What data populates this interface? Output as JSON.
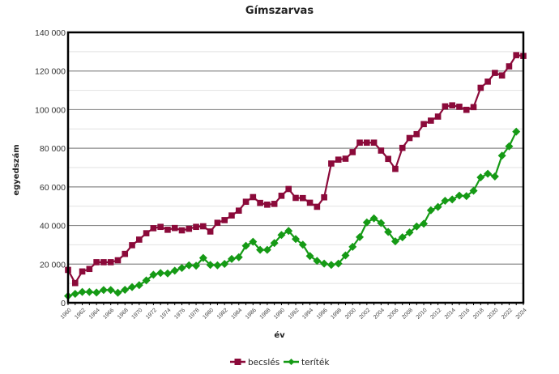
{
  "chart_data": {
    "type": "line",
    "title": "Gímszarvas",
    "xlabel": "év",
    "ylabel": "egyedszám",
    "ylim": [
      0,
      140000
    ],
    "xlim": [
      1960,
      2024
    ],
    "yticks": [
      0,
      20000,
      40000,
      60000,
      80000,
      100000,
      120000,
      140000
    ],
    "ytick_labels": [
      "0",
      "20 000",
      "40 000",
      "60 000",
      "80 000",
      "100 000",
      "120 000",
      "140 000"
    ],
    "xtick_labels": [
      "1960",
      "1962",
      "1964",
      "1966",
      "1968",
      "1970",
      "1972",
      "1974",
      "1976",
      "1978",
      "1980",
      "1982",
      "1984",
      "1986",
      "1988",
      "1990",
      "1992",
      "1994",
      "1996",
      "1998",
      "2000",
      "2002",
      "2004",
      "2006",
      "2008",
      "2010",
      "2012",
      "2014",
      "2016",
      "2018",
      "2020",
      "2022",
      "2024"
    ],
    "grid": {
      "major": 20000,
      "minor": 10000
    },
    "legend_position": "bottom",
    "x": [
      1960,
      1961,
      1962,
      1963,
      1964,
      1965,
      1966,
      1967,
      1968,
      1969,
      1970,
      1971,
      1972,
      1973,
      1974,
      1975,
      1976,
      1977,
      1978,
      1979,
      1980,
      1981,
      1982,
      1983,
      1984,
      1985,
      1986,
      1987,
      1988,
      1989,
      1990,
      1991,
      1992,
      1993,
      1994,
      1995,
      1996,
      1997,
      1998,
      1999,
      2000,
      2001,
      2002,
      2003,
      2004,
      2005,
      2006,
      2007,
      2008,
      2009,
      2010,
      2011,
      2012,
      2013,
      2014,
      2015,
      2016,
      2017,
      2018,
      2019,
      2020,
      2021,
      2022,
      2023,
      2024
    ],
    "series": [
      {
        "name": "becslés",
        "color": "#8b0a3a",
        "marker": "square",
        "values": [
          17000,
          10200,
          16200,
          17500,
          21000,
          21000,
          21000,
          22000,
          25300,
          29800,
          32700,
          36000,
          38600,
          39300,
          37800,
          38700,
          37500,
          38300,
          39300,
          39600,
          36900,
          41400,
          42800,
          45200,
          47700,
          52300,
          54700,
          51700,
          50800,
          51200,
          55400,
          58900,
          54300,
          54200,
          51800,
          49700,
          54600,
          72100,
          74100,
          74600,
          78000,
          82900,
          82900,
          82900,
          78800,
          74500,
          69300,
          80200,
          85300,
          87300,
          92500,
          94300,
          96400,
          101700,
          102200,
          101500,
          99900,
          101300,
          111300,
          114500,
          119000,
          117700,
          122400,
          128200,
          127800
        ]
      },
      {
        "name": "teríték",
        "color": "#159a15",
        "marker": "diamond",
        "values": [
          3500,
          4600,
          5600,
          5600,
          5300,
          6600,
          6600,
          5200,
          6700,
          8100,
          9100,
          11600,
          14500,
          15400,
          15200,
          16600,
          18000,
          19400,
          19200,
          23200,
          19600,
          19400,
          20100,
          22700,
          23600,
          29500,
          31600,
          27400,
          27400,
          30900,
          35100,
          37200,
          33000,
          30100,
          24200,
          21700,
          20300,
          19600,
          20300,
          24500,
          29000,
          34000,
          41600,
          43700,
          41300,
          36700,
          31800,
          33900,
          36400,
          39500,
          40900,
          47900,
          49600,
          52800,
          53500,
          55500,
          55200,
          58000,
          64900,
          66800,
          65400,
          76200,
          81000,
          88600,
          null
        ]
      }
    ]
  },
  "legend": {
    "items": [
      {
        "label": "becslés",
        "color": "#8b0a3a"
      },
      {
        "label": "teríték",
        "color": "#159a15"
      }
    ]
  }
}
